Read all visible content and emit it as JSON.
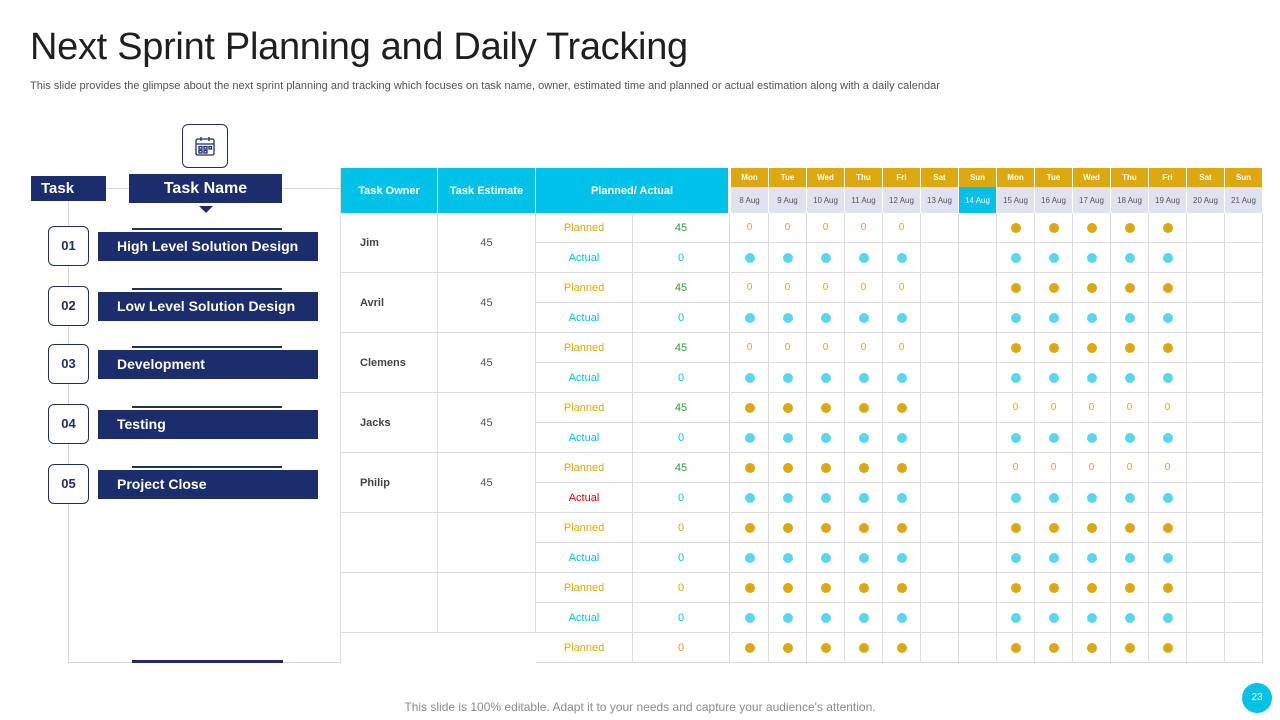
{
  "title": "Next Sprint Planning and Daily Tracking",
  "subtitle": "This slide provides the glimpse about the next sprint planning and tracking which focuses on task name, owner, estimated time and planned or actual estimation along with a daily calendar",
  "icons": {
    "calendar": "calendar-icon"
  },
  "left": {
    "task_label": "Task",
    "task_name_label": "Task Name",
    "tasks": [
      {
        "num": "01",
        "name": "High Level Solution Design"
      },
      {
        "num": "02",
        "name": "Low Level Solution Design"
      },
      {
        "num": "03",
        "name": "Development"
      },
      {
        "num": "04",
        "name": "Testing"
      },
      {
        "num": "05",
        "name": "Project Close"
      }
    ]
  },
  "table": {
    "headers": {
      "owner": "Task Owner",
      "estimate": "Task Estimate",
      "planned_actual": "Planned/ Actual"
    },
    "days": [
      "Mon",
      "Tue",
      "Wed",
      "Thu",
      "Fri",
      "Sat",
      "Sun",
      "Mon",
      "Tue",
      "Wed",
      "Thu",
      "Fri",
      "Sat",
      "Sun"
    ],
    "dates": [
      "8 Aug",
      "9 Aug",
      "10 Aug",
      "11 Aug",
      "12 Aug",
      "13 Aug",
      "14 Aug",
      "15 Aug",
      "16 Aug",
      "17 Aug",
      "18 Aug",
      "19 Aug",
      "20 Aug",
      "21 Aug"
    ],
    "highlight_date": "14 Aug",
    "planned_label": "Planned",
    "actual_label": "Actual",
    "owners": [
      {
        "name": "Jim",
        "estimate": "45"
      },
      {
        "name": "Avril",
        "estimate": "45"
      },
      {
        "name": "Clemens",
        "estimate": "45"
      },
      {
        "name": "Jacks",
        "estimate": "45"
      },
      {
        "name": "Philip",
        "estimate": "45"
      },
      {
        "name": "",
        "estimate": ""
      },
      {
        "name": "",
        "estimate": ""
      }
    ],
    "rows": [
      {
        "type": "Planned",
        "value": "45",
        "week1": [
          "0",
          "0",
          "0",
          "0",
          "0"
        ],
        "week2": [
          "dot",
          "dot",
          "dot",
          "dot",
          "dot"
        ]
      },
      {
        "type": "Actual",
        "value": "0",
        "week1": [
          "dot",
          "dot",
          "dot",
          "dot",
          "dot"
        ],
        "week2": [
          "dot",
          "dot",
          "dot",
          "dot",
          "dot"
        ]
      },
      {
        "type": "Planned",
        "value": "45",
        "week1": [
          "0",
          "0",
          "0",
          "0",
          "0"
        ],
        "week2": [
          "dot",
          "dot",
          "dot",
          "dot",
          "dot"
        ]
      },
      {
        "type": "Actual",
        "value": "0",
        "week1": [
          "dot",
          "dot",
          "dot",
          "dot",
          "dot"
        ],
        "week2": [
          "dot",
          "dot",
          "dot",
          "dot",
          "dot"
        ]
      },
      {
        "type": "Planned",
        "value": "45",
        "week1": [
          "0",
          "0",
          "0",
          "0",
          "0"
        ],
        "week2": [
          "dot",
          "dot",
          "dot",
          "dot",
          "dot"
        ]
      },
      {
        "type": "Actual",
        "value": "0",
        "week1": [
          "dot",
          "dot",
          "dot",
          "dot",
          "dot"
        ],
        "week2": [
          "dot",
          "dot",
          "dot",
          "dot",
          "dot"
        ]
      },
      {
        "type": "Planned",
        "value": "45",
        "week1": [
          "dot",
          "dot",
          "dot",
          "dot",
          "dot"
        ],
        "week2": [
          "0",
          "0",
          "0",
          "0",
          "0"
        ]
      },
      {
        "type": "Actual",
        "value": "0",
        "week1": [
          "dot",
          "dot",
          "dot",
          "dot",
          "dot"
        ],
        "week2": [
          "dot",
          "dot",
          "dot",
          "dot",
          "dot"
        ]
      },
      {
        "type": "Planned",
        "value": "45",
        "week1": [
          "dot",
          "dot",
          "dot",
          "dot",
          "dot"
        ],
        "week2": [
          "0",
          "0",
          "0",
          "0",
          "0"
        ]
      },
      {
        "type": "Actual",
        "value": "0",
        "week1": [
          "dot",
          "dot",
          "dot",
          "dot",
          "dot"
        ],
        "week2": [
          "dot",
          "dot",
          "dot",
          "dot",
          "dot"
        ],
        "red": true
      },
      {
        "type": "Planned",
        "value": "0",
        "week1": [
          "dot",
          "dot",
          "dot",
          "dot",
          "dot"
        ],
        "week2": [
          "dot",
          "dot",
          "dot",
          "dot",
          "dot"
        ]
      },
      {
        "type": "Actual",
        "value": "0",
        "week1": [
          "dot",
          "dot",
          "dot",
          "dot",
          "dot"
        ],
        "week2": [
          "dot",
          "dot",
          "dot",
          "dot",
          "dot"
        ]
      },
      {
        "type": "Planned",
        "value": "0",
        "week1": [
          "dot",
          "dot",
          "dot",
          "dot",
          "dot"
        ],
        "week2": [
          "dot",
          "dot",
          "dot",
          "dot",
          "dot"
        ]
      },
      {
        "type": "Actual",
        "value": "0",
        "week1": [
          "dot",
          "dot",
          "dot",
          "dot",
          "dot"
        ],
        "week2": [
          "dot",
          "dot",
          "dot",
          "dot",
          "dot"
        ]
      },
      {
        "type": "Planned",
        "value": "0",
        "week1": [
          "dot",
          "dot",
          "dot",
          "dot",
          "dot"
        ],
        "week2": [
          "dot",
          "dot",
          "dot",
          "dot",
          "dot"
        ]
      }
    ]
  },
  "colors": {
    "navy": "#1c2d6e",
    "cyan": "#00c2e8",
    "gold": "#dca80e",
    "green": "#2e9e2e",
    "red": "#e00000"
  },
  "footer": "This slide is 100% editable. Adapt it to your needs and capture your audience's attention.",
  "page_number": "23"
}
